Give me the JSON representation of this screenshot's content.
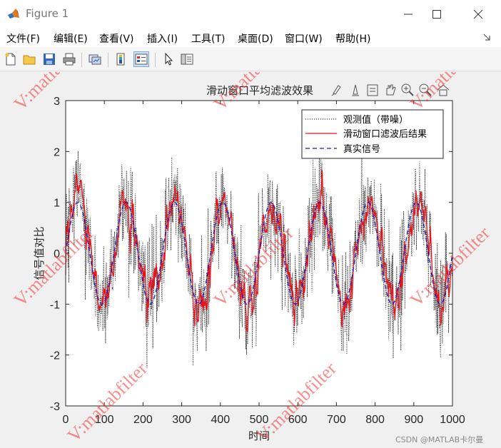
{
  "window": {
    "title": "Figure 1",
    "accent": "#e07a1f"
  },
  "menu": {
    "items": [
      "文件(F)",
      "编辑(E)",
      "查看(V)",
      "插入(I)",
      "工具(T)",
      "桌面(D)",
      "窗口(W)",
      "帮助(H)"
    ]
  },
  "toolbar": {
    "buttons": [
      "new-figure-icon",
      "open-file-icon",
      "save-icon",
      "print-icon",
      "link-plot-icon",
      "colorbar-icon",
      "legend-icon",
      "pointer-icon",
      "property-inspector-icon"
    ]
  },
  "axes_toolbar": {
    "buttons": [
      "brush-icon",
      "data-tips-icon",
      "export-icon",
      "pan-icon",
      "zoom-in-icon",
      "zoom-out-icon",
      "home-icon"
    ]
  },
  "watermark_text": "V:matlabfilter",
  "credit_text": "CSDN @MATLAB卡尔曼",
  "chart_data": {
    "type": "line",
    "title": "滑动窗口平均滤波效果",
    "xlabel": "时间",
    "ylabel": "信号值对比",
    "xlim": [
      0,
      1000
    ],
    "ylim": [
      -3,
      3
    ],
    "xticks": [
      "0",
      "100",
      "200",
      "300",
      "400",
      "500",
      "600",
      "700",
      "800",
      "900",
      "1000"
    ],
    "yticks": [
      "3",
      "2",
      "1",
      "0",
      "-1",
      "-2",
      "-3"
    ],
    "grid": false,
    "legend_position": "top-right",
    "signal": {
      "amplitude": 1,
      "period": 125,
      "samples": 1000
    },
    "series": [
      {
        "name": "观测值（带噪）",
        "style": "dotted",
        "color": "#000000",
        "noise_std": 0.5
      },
      {
        "name": "滑动窗口滤波后结果",
        "style": "solid",
        "color": "#e8141c",
        "window": 5
      },
      {
        "name": "真实信号",
        "style": "dashed",
        "color": "#1a1acc"
      }
    ]
  }
}
